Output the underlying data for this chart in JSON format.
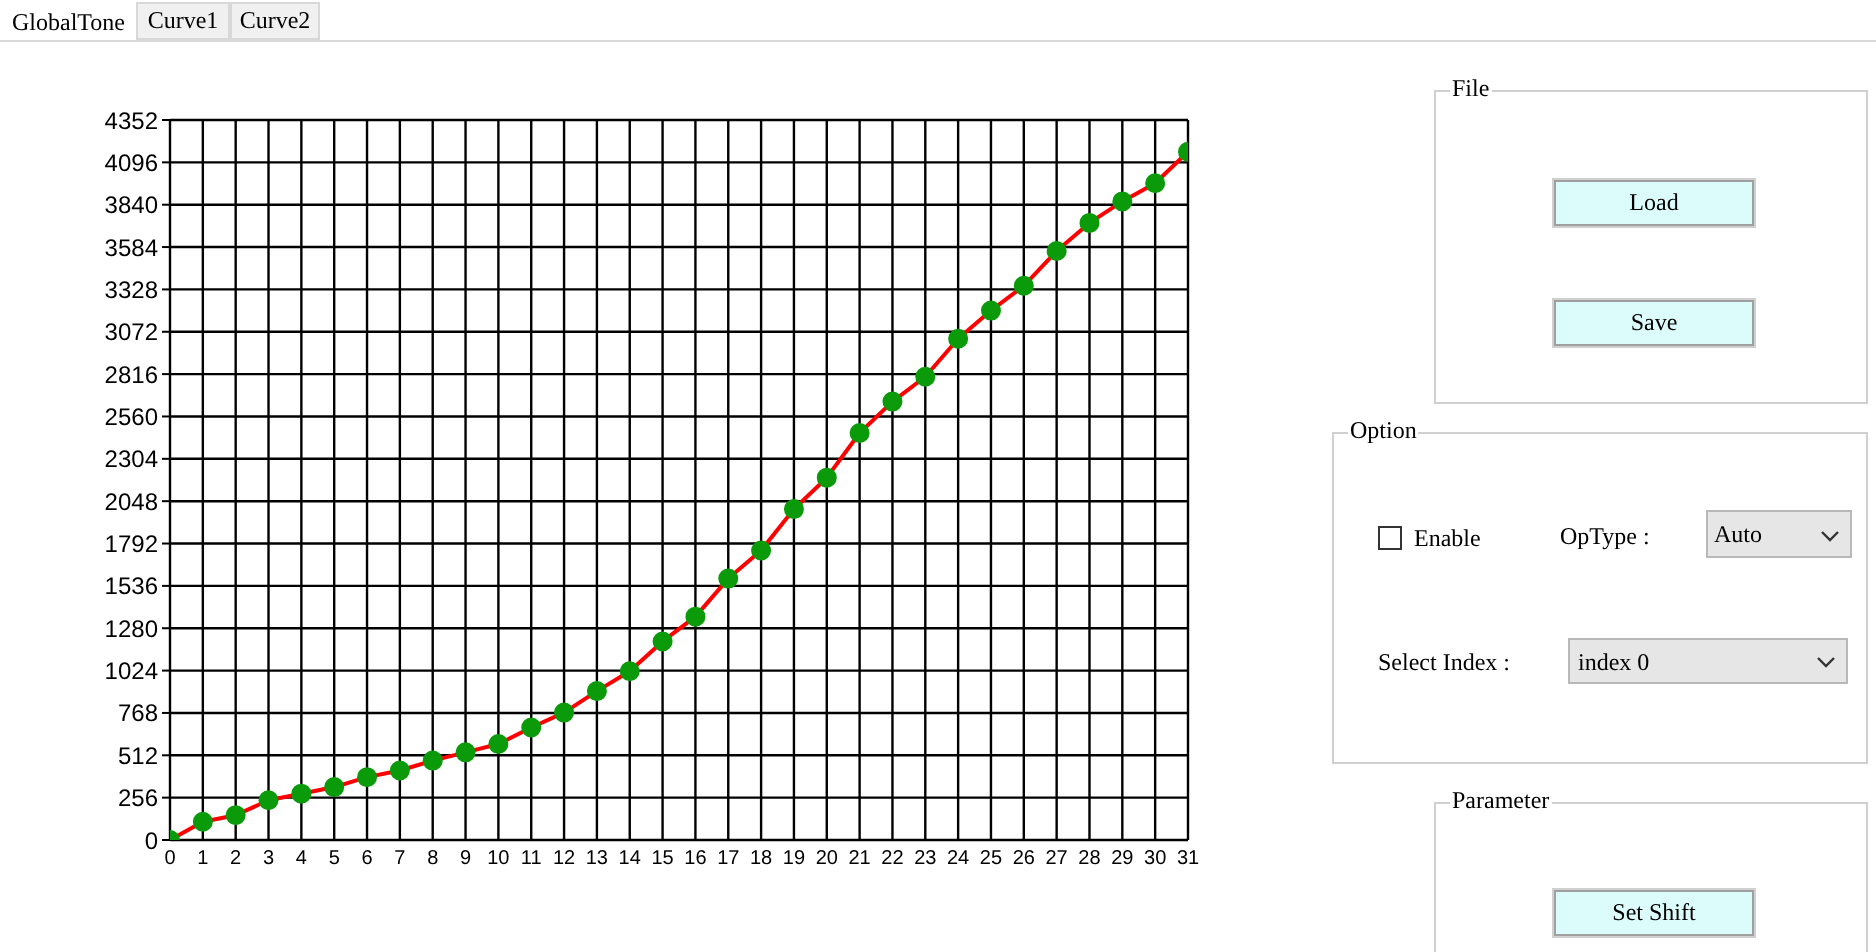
{
  "chart_data": [
    {
      "type": "line",
      "x": [
        0,
        1,
        2,
        3,
        4,
        5,
        6,
        7,
        8,
        9,
        10,
        11,
        12,
        13,
        14,
        15,
        16,
        17,
        18,
        19,
        20,
        21,
        22,
        23,
        24,
        25,
        26,
        27,
        28,
        29,
        30,
        31
      ],
      "series": [
        {
          "color": "#ff0000",
          "values": [
            0,
            110,
            150,
            240,
            280,
            320,
            380,
            420,
            480,
            530,
            580,
            680,
            770,
            900,
            1020,
            1200,
            1350,
            1580,
            1750,
            2000,
            2190,
            2460,
            2650,
            2800,
            3030,
            3200,
            3350,
            3560,
            3730,
            3860,
            3970,
            4160
          ]
        }
      ],
      "xlim": [
        0,
        31
      ],
      "xticks": [
        0,
        1,
        2,
        3,
        4,
        5,
        6,
        7,
        8,
        9,
        10,
        11,
        12,
        13,
        14,
        15,
        16,
        17,
        18,
        19,
        20,
        21,
        22,
        23,
        24,
        25,
        26,
        27,
        28,
        29,
        30,
        31
      ],
      "ylim": [
        0,
        4352
      ],
      "yticks": [
        0,
        256,
        512,
        768,
        1024,
        1280,
        1536,
        1792,
        2048,
        2304,
        2560,
        2816,
        3072,
        3328,
        3584,
        3840,
        4096,
        4352
      ],
      "grid": true,
      "marker": "circle",
      "line_style": "solid",
      "legend": false
    },
    {
      "type": "other",
      "annotations": [
        "GlobalTone",
        "Curve1",
        "Curve2",
        "File",
        "Load",
        "Save",
        "Option",
        "Enable",
        "OpType :",
        "Auto",
        "Select Index :",
        "index 0",
        "Parameter",
        "Set Shift"
      ]
    }
  ]
}
